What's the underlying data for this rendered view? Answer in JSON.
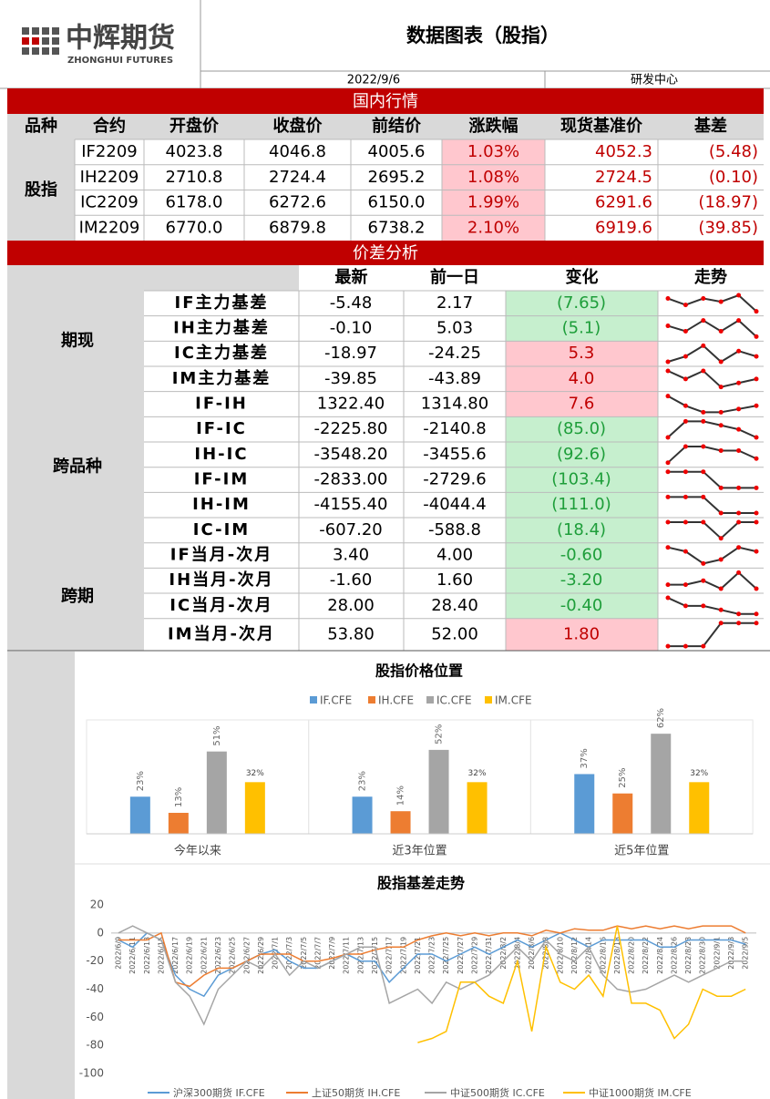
{
  "header": {
    "logo_cn": "中辉期货",
    "logo_en": "ZHONGHUI FUTURES",
    "title": "数据图表（股指）",
    "date": "2022/9/6",
    "dept": "研发中心"
  },
  "market": {
    "title": "国内行情",
    "columns": [
      "品种",
      "合约",
      "开盘价",
      "收盘价",
      "前结价",
      "涨跌幅",
      "现货基准价",
      "基差"
    ],
    "group": "股指",
    "rows": [
      [
        "IF2209",
        "4023.8",
        "4046.8",
        "4005.6",
        "1.03%",
        "4052.3",
        "(5.48)"
      ],
      [
        "IH2209",
        "2710.8",
        "2724.4",
        "2695.2",
        "1.08%",
        "2724.5",
        "(0.10)"
      ],
      [
        "IC2209",
        "6178.0",
        "6272.6",
        "6150.0",
        "1.99%",
        "6291.6",
        "(18.97)"
      ],
      [
        "IM2209",
        "6770.0",
        "6879.8",
        "6738.2",
        "2.10%",
        "6919.6",
        "(39.85)"
      ]
    ]
  },
  "spread": {
    "title": "价差分析",
    "columns": [
      "最新",
      "前一日",
      "变化",
      "走势"
    ],
    "groups": [
      {
        "label": "期现",
        "rows": [
          {
            "name": "IF主力基差",
            "latest": "-5.48",
            "prev": "2.17",
            "change": "(7.65)",
            "bg": "#c6efce",
            "color": "#1e9e3a",
            "trend": [
              5,
              3,
              5,
              4,
              6,
              1
            ]
          },
          {
            "name": "IH主力基差",
            "latest": "-0.10",
            "prev": "5.03",
            "change": "(5.1)",
            "bg": "#c6efce",
            "color": "#1e9e3a",
            "trend": [
              4,
              3,
              5,
              3,
              5,
              2
            ]
          },
          {
            "name": "IC主力基差",
            "latest": "-18.97",
            "prev": "-24.25",
            "change": "5.3",
            "bg": "#ffc7ce",
            "color": "#c00000",
            "trend": [
              3,
              4,
              6,
              3,
              5,
              4
            ]
          },
          {
            "name": "IM主力基差",
            "latest": "-39.85",
            "prev": "-43.89",
            "change": "4.0",
            "bg": "#ffc7ce",
            "color": "#c00000",
            "trend": [
              5,
              3,
              5,
              1,
              2,
              3
            ]
          }
        ]
      },
      {
        "label": "跨品种",
        "rows": [
          {
            "name": "IF-IH",
            "latest": "1322.40",
            "prev": "1314.80",
            "change": "7.6",
            "bg": "#ffc7ce",
            "color": "#c00000",
            "trend": [
              6,
              3,
              1,
              1,
              2,
              3
            ]
          },
          {
            "name": "IF-IC",
            "latest": "-2225.80",
            "prev": "-2140.8",
            "change": "(85.0)",
            "bg": "#c6efce",
            "color": "#1e9e3a",
            "trend": [
              2,
              6,
              6,
              5,
              4,
              2
            ]
          },
          {
            "name": "IH-IC",
            "latest": "-3548.20",
            "prev": "-3455.6",
            "change": "(92.6)",
            "bg": "#c6efce",
            "color": "#1e9e3a",
            "trend": [
              2,
              6,
              6,
              5,
              5,
              3
            ]
          },
          {
            "name": "IF-IM",
            "latest": "-2833.00",
            "prev": "-2729.6",
            "change": "(103.4)",
            "bg": "#c6efce",
            "color": "#1e9e3a",
            "trend": [
              6,
              6,
              6,
              3,
              3,
              3
            ]
          },
          {
            "name": "IH-IM",
            "latest": "-4155.40",
            "prev": "-4044.4",
            "change": "(111.0)",
            "bg": "#c6efce",
            "color": "#1e9e3a",
            "trend": [
              6,
              6,
              6,
              2,
              2,
              2
            ]
          },
          {
            "name": "IC-IM",
            "latest": "-607.20",
            "prev": "-588.8",
            "change": "(18.4)",
            "bg": "#c6efce",
            "color": "#1e9e3a",
            "trend": [
              4,
              4,
              4,
              3,
              4,
              4
            ]
          }
        ]
      },
      {
        "label": "跨期",
        "rows": [
          {
            "name": "IF当月-次月",
            "latest": "3.40",
            "prev": "4.00",
            "change": "-0.60",
            "bg": "#c6efce",
            "color": "#1e9e3a",
            "trend": [
              5,
              4,
              1,
              2,
              5,
              4
            ]
          },
          {
            "name": "IH当月-次月",
            "latest": "-1.60",
            "prev": "1.60",
            "change": "-3.20",
            "bg": "#c6efce",
            "color": "#1e9e3a",
            "trend": [
              3,
              3,
              4,
              2,
              6,
              2
            ]
          },
          {
            "name": "IC当月-次月",
            "latest": "28.00",
            "prev": "28.40",
            "change": "-0.40",
            "bg": "#c6efce",
            "color": "#1e9e3a",
            "trend": [
              6,
              4,
              4,
              3,
              2,
              2
            ]
          },
          {
            "name": "IM当月-次月",
            "latest": "53.80",
            "prev": "52.00",
            "change": "1.80",
            "bg": "#ffc7ce",
            "color": "#c00000",
            "trend": [
              1,
              1,
              1,
              5,
              5,
              5
            ]
          }
        ]
      }
    ]
  },
  "chart_data": [
    {
      "type": "bar",
      "title": "股指价格位置",
      "categories": [
        "今年以来",
        "近3年位置",
        "近5年位置"
      ],
      "ylim": [
        0,
        70
      ],
      "series": [
        {
          "name": "IF.CFE",
          "color": "#5b9bd5",
          "values": [
            23,
            23,
            37
          ],
          "value_labels": [
            "23%",
            "23%",
            "37%"
          ]
        },
        {
          "name": "IH.CFE",
          "color": "#ed7d31",
          "values": [
            13,
            14,
            25
          ],
          "value_labels": [
            "13%",
            "14%",
            "25%"
          ]
        },
        {
          "name": "IC.CFE",
          "color": "#a5a5a5",
          "values": [
            51,
            52,
            62
          ],
          "value_labels": [
            "51%",
            "52%",
            "62%"
          ]
        },
        {
          "name": "IM.CFE",
          "color": "#ffc000",
          "values": [
            32,
            32,
            32
          ],
          "value_labels": [
            "32%",
            "32%",
            "32%"
          ]
        }
      ]
    },
    {
      "type": "line",
      "title": "股指基差走势",
      "ylim": [
        -100,
        20
      ],
      "yticks": [
        20,
        0,
        -20,
        -40,
        -60,
        -80,
        -100
      ],
      "categories": [
        "2022/6/9",
        "2022/6/11",
        "2022/6/13",
        "2022/6/15",
        "2022/6/17",
        "2022/6/19",
        "2022/6/21",
        "2022/6/23",
        "2022/6/25",
        "2022/6/27",
        "2022/6/29",
        "2022/7/1",
        "2022/7/3",
        "2022/7/5",
        "2022/7/7",
        "2022/7/9",
        "2022/7/11",
        "2022/7/13",
        "2022/7/15",
        "2022/7/17",
        "2022/7/19",
        "2022/7/21",
        "2022/7/23",
        "2022/7/25",
        "2022/7/27",
        "2022/7/29",
        "2022/7/31",
        "2022/8/2",
        "2022/8/4",
        "2022/8/6",
        "2022/8/8",
        "2022/8/10",
        "2022/8/12",
        "2022/8/14",
        "2022/8/16",
        "2022/8/18",
        "2022/8/20",
        "2022/8/22",
        "2022/8/24",
        "2022/8/26",
        "2022/8/28",
        "2022/8/30",
        "2022/9/1",
        "2022/9/3",
        "2022/9/5"
      ],
      "series": [
        {
          "name": "沪深300期货 IF.CFE",
          "color": "#5b9bd5",
          "values": [
            -5,
            -10,
            0,
            -5,
            -30,
            -40,
            -45,
            -30,
            -25,
            -20,
            -15,
            -12,
            -20,
            -25,
            -25,
            -20,
            -15,
            -20,
            -20,
            -35,
            -25,
            -15,
            -15,
            -20,
            -15,
            -10,
            -15,
            -10,
            -5,
            -10,
            -5,
            0,
            -5,
            -10,
            -5,
            -5,
            -5,
            -5,
            -10,
            -10,
            -5,
            -5,
            -5,
            -5,
            -8
          ]
        },
        {
          "name": "上证50期货 IH.CFE",
          "color": "#ed7d31",
          "values": [
            -5,
            -5,
            -5,
            0,
            -35,
            -38,
            -30,
            -25,
            -25,
            -20,
            -15,
            -15,
            -15,
            -20,
            -20,
            -18,
            -15,
            -15,
            -12,
            -10,
            -10,
            -5,
            -2,
            0,
            -2,
            0,
            -2,
            0,
            0,
            -2,
            2,
            0,
            3,
            2,
            2,
            5,
            3,
            5,
            3,
            5,
            3,
            5,
            5,
            5,
            0
          ]
        },
        {
          "name": "中证500期货 IC.CFE",
          "color": "#a5a5a5",
          "values": [
            0,
            5,
            0,
            -5,
            -35,
            -45,
            -65,
            -40,
            -30,
            -20,
            -25,
            -15,
            -30,
            -20,
            -25,
            -20,
            -15,
            -10,
            -10,
            -50,
            -45,
            -40,
            -50,
            -35,
            -40,
            -35,
            -30,
            -20,
            -10,
            -20,
            -5,
            -15,
            -20,
            -10,
            -30,
            -40,
            -42,
            -40,
            -35,
            -30,
            -35,
            -30,
            -25,
            -20,
            -20
          ]
        },
        {
          "name": "中证1000期货 IM.CFE",
          "color": "#ffc000",
          "values": [
            null,
            null,
            null,
            null,
            null,
            null,
            null,
            null,
            null,
            null,
            null,
            null,
            null,
            null,
            null,
            null,
            null,
            null,
            null,
            null,
            null,
            -78,
            -75,
            -70,
            -35,
            -35,
            -45,
            -50,
            -20,
            -70,
            -10,
            -35,
            -40,
            -30,
            -45,
            5,
            -50,
            -50,
            -55,
            -75,
            -65,
            -40,
            -45,
            -45,
            -40
          ]
        }
      ]
    }
  ]
}
